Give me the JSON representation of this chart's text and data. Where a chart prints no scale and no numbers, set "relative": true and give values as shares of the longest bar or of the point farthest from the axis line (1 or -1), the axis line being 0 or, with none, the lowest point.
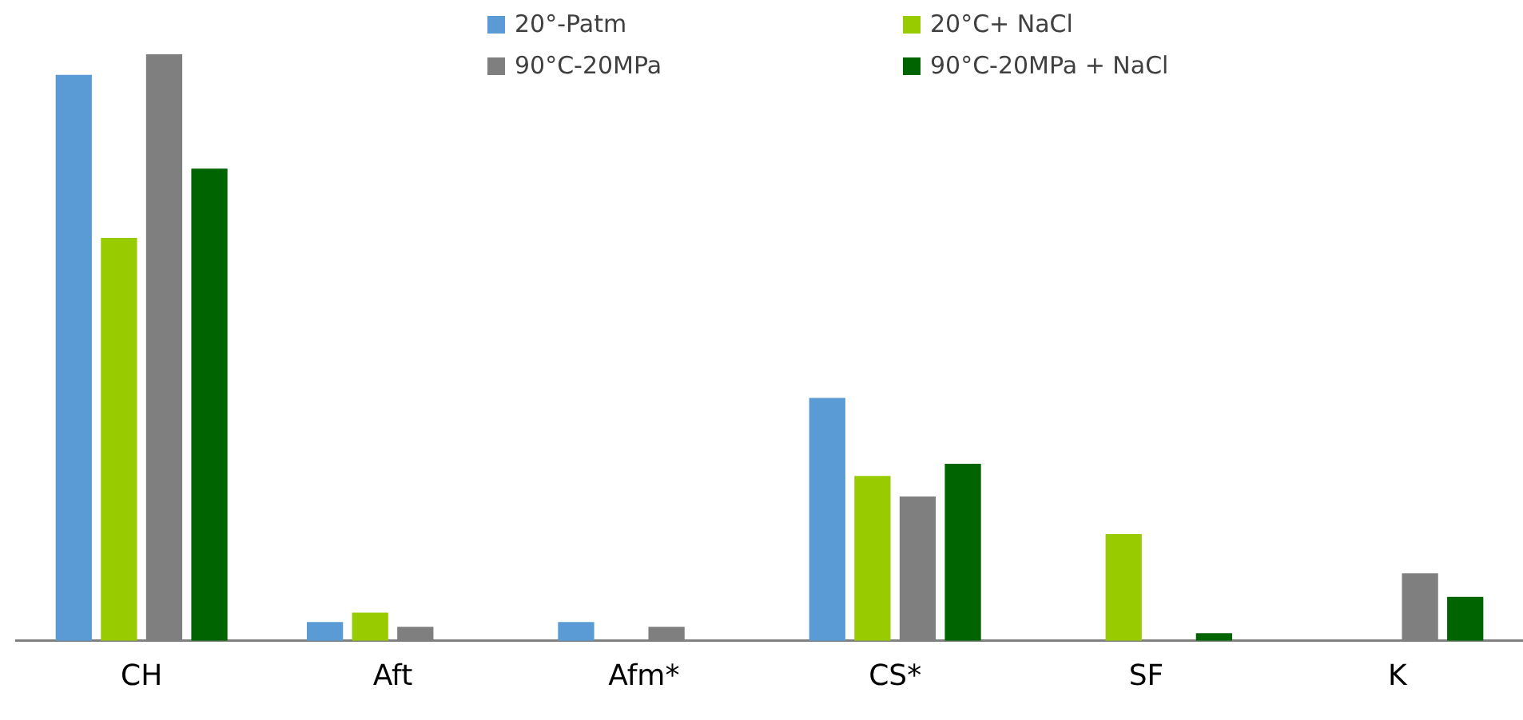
{
  "chart_data": {
    "type": "bar",
    "relative": true,
    "categories": [
      "CH",
      "Aft",
      "Afm*",
      "CS*",
      "SF",
      "K"
    ],
    "series": [
      {
        "name": "20°-Patm",
        "color": "#5b9bd5",
        "values": [
          0.965,
          0.032,
          0.032,
          0.414,
          null,
          null
        ]
      },
      {
        "name": "20°C+ NaCl",
        "color": "#99cc00",
        "values": [
          0.687,
          0.048,
          null,
          0.281,
          0.182,
          null
        ]
      },
      {
        "name": "90°C-20MPa",
        "color": "#7f7f7f",
        "values": [
          1,
          0.024,
          0.024,
          0.246,
          null,
          0.115
        ]
      },
      {
        "name": "90°C-20MPa + NaCl",
        "color": "#006400",
        "values": [
          0.805,
          null,
          null,
          0.302,
          0.013,
          0.075
        ]
      }
    ],
    "legend": "top",
    "grid": false
  }
}
